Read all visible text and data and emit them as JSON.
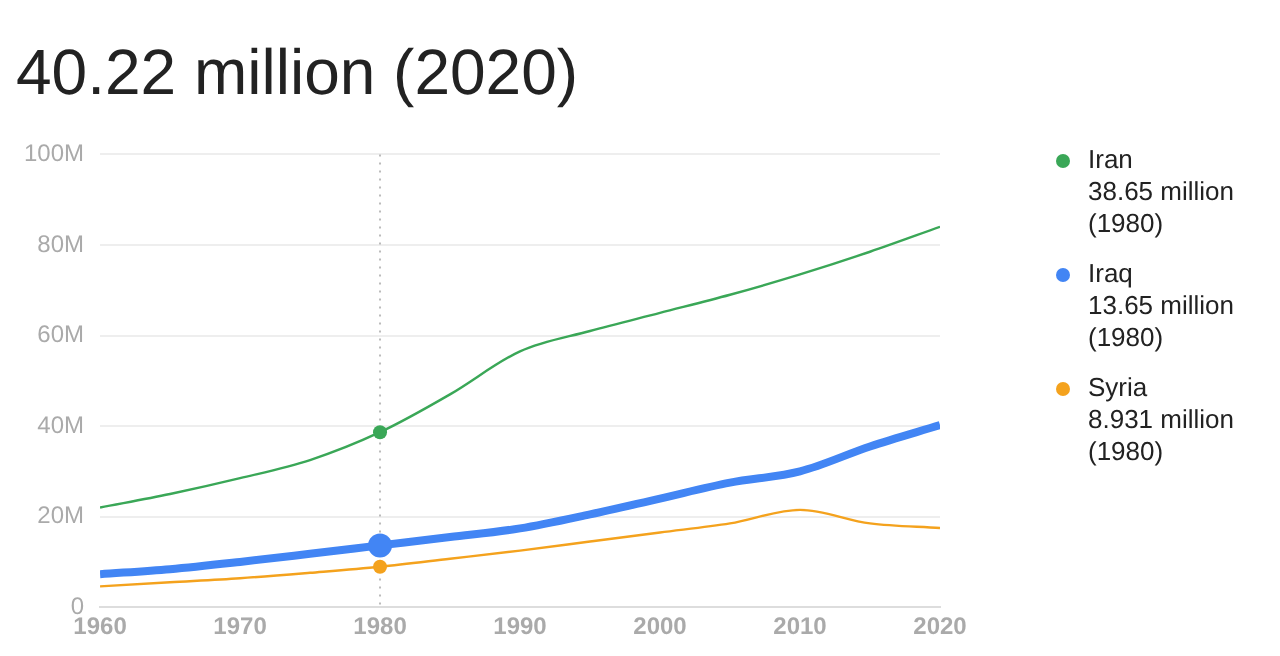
{
  "chart_data": {
    "type": "line",
    "title": "40.22 million (2020)",
    "x": [
      1960,
      1965,
      1970,
      1975,
      1980,
      1985,
      1990,
      1995,
      2000,
      2005,
      2010,
      2015,
      2020
    ],
    "series": [
      {
        "name": "Iran",
        "color": "#3aa757",
        "values": [
          22,
          25,
          28.5,
          32.5,
          38.65,
          47,
          56.5,
          61,
          65,
          69,
          73.5,
          78.5,
          84
        ]
      },
      {
        "name": "Iraq",
        "color": "#4285f4",
        "values": [
          7.3,
          8.4,
          10,
          11.8,
          13.65,
          15.5,
          17.4,
          20.5,
          24,
          27.5,
          30,
          35.5,
          40.22
        ]
      },
      {
        "name": "Syria",
        "color": "#f4a21d",
        "values": [
          4.6,
          5.5,
          6.4,
          7.6,
          8.931,
          10.7,
          12.5,
          14.5,
          16.5,
          18.5,
          21.5,
          18.5,
          17.5
        ]
      }
    ],
    "xlim": [
      1960,
      2020
    ],
    "xticks": [
      1960,
      1970,
      1980,
      1990,
      2000,
      2010,
      2020
    ],
    "ylim": [
      0,
      100
    ],
    "yticks": [
      0,
      {
        "value": 20,
        "label": "20M"
      },
      {
        "value": 40,
        "label": "40M"
      },
      {
        "value": 60,
        "label": "60M"
      },
      {
        "value": 80,
        "label": "80M"
      },
      {
        "value": 100,
        "label": "100M"
      }
    ],
    "annotations": [
      "38.65 million (1980)",
      "13.65 million (1980)",
      "8.931 million (1980)"
    ],
    "ref_lines": [
      {
        "axis": "x",
        "value": 1980,
        "color": "#bbbbbb",
        "line_style": "dotted"
      }
    ],
    "grid": "y",
    "legend": "right",
    "marker": "none",
    "line_style": "solid"
  }
}
